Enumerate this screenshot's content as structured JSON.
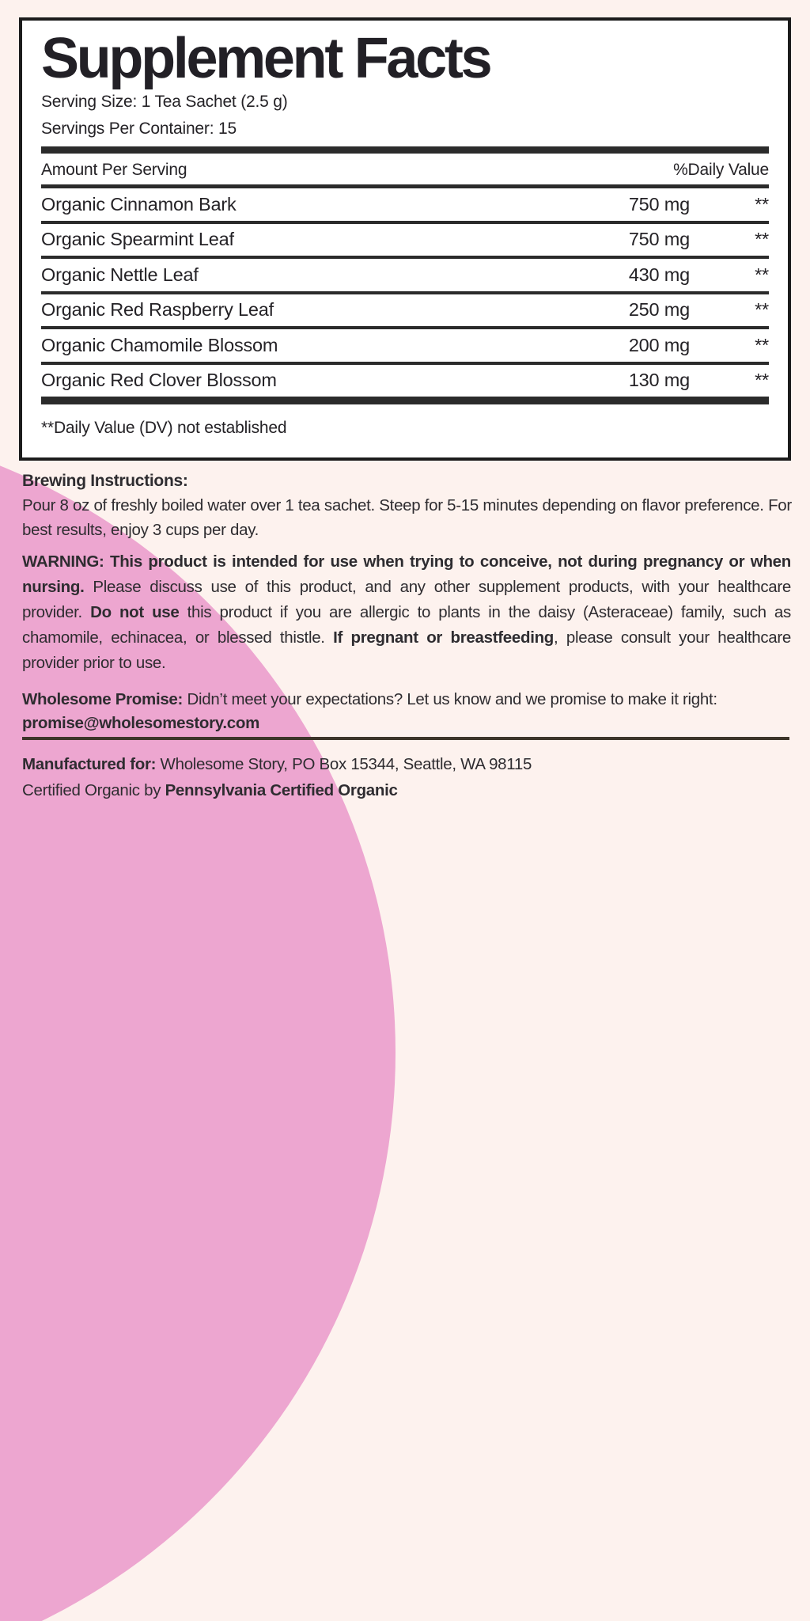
{
  "colors": {
    "background": "#fdf2ee",
    "accent_pink": "#eda6d0",
    "panel_background": "#ffffff",
    "panel_border": "#1c1c1c",
    "table_bar": "#2b2b2b",
    "rule": "#3d352a"
  },
  "panel": {
    "title": "Supplement Facts",
    "serving_size": "Serving Size: 1 Tea Sachet (2.5 g)",
    "servings_per_container": "Servings Per Container: 15",
    "table": {
      "amount_header": "Amount Per Serving",
      "dv_header": "%Daily Value",
      "rows": [
        {
          "name": "Organic Cinnamon Bark",
          "amount": "750 mg",
          "dv": "**"
        },
        {
          "name": "Organic Spearmint Leaf",
          "amount": "750 mg",
          "dv": "**"
        },
        {
          "name": "Organic Nettle Leaf",
          "amount": "430 mg",
          "dv": "**"
        },
        {
          "name": "Organic Red Raspberry Leaf",
          "amount": "250 mg",
          "dv": "**"
        },
        {
          "name": "Organic Chamomile Blossom",
          "amount": "200 mg",
          "dv": "**"
        },
        {
          "name": "Organic Red Clover Blossom",
          "amount": "130 mg",
          "dv": "**"
        }
      ]
    },
    "footnote": "**Daily Value (DV) not established"
  },
  "brewing": {
    "heading": "Brewing Instructions:",
    "body": "Pour 8 oz of freshly boiled water over 1 tea sachet. Steep for 5-15 minutes depending on flavor preference. For best results, enjoy 3 cups per day."
  },
  "warning": {
    "segments": [
      {
        "text": "WARNING: This product is intended for use when trying to conceive, not during pregnancy or when nursing.",
        "bold": true
      },
      {
        "text": " Please discuss use of this product, and any other supplement products, with your healthcare provider. ",
        "bold": false
      },
      {
        "text": "Do not use",
        "bold": true
      },
      {
        "text": " this product if you are allergic to plants in the daisy (Asteraceae) family, such as chamomile, echinacea, or blessed thistle. ",
        "bold": false
      },
      {
        "text": "If pregnant or breastfeeding",
        "bold": true
      },
      {
        "text": ", please consult your healthcare provider prior to use.",
        "bold": false
      }
    ]
  },
  "promise": {
    "segments": [
      {
        "text": "Wholesome Promise:",
        "bold": true
      },
      {
        "text": " Didn’t meet your expectations? Let us know and we promise to make it right:",
        "bold": false
      }
    ],
    "email": "promise@wholesomestory.com"
  },
  "manufactured": {
    "segments": [
      {
        "text": "Manufactured for:",
        "bold": true
      },
      {
        "text": "  Wholesome Story, PO Box 15344, Seattle, WA 98115",
        "bold": false
      }
    ]
  },
  "certified": {
    "segments": [
      {
        "text": "Certified Organic by ",
        "bold": false
      },
      {
        "text": "Pennsylvania Certified Organic",
        "bold": true
      }
    ]
  }
}
